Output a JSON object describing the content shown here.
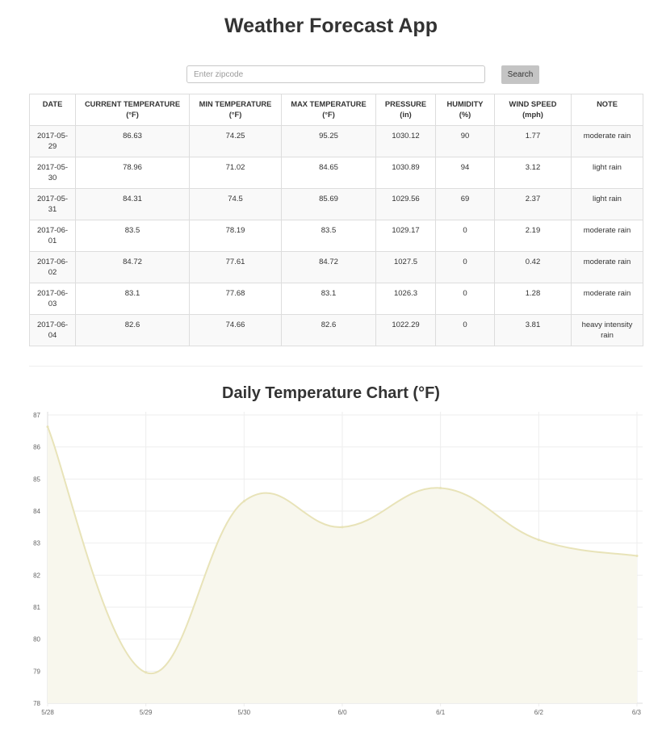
{
  "header": {
    "title": "Weather Forecast App"
  },
  "search": {
    "placeholder": "Enter zipcode",
    "value": "",
    "button_label": "Search"
  },
  "table": {
    "columns": [
      [
        "DATE"
      ],
      [
        "CURRENT TEMPERATURE",
        "(°F)"
      ],
      [
        "MIN TEMPERATURE",
        "(°F)"
      ],
      [
        "MAX TEMPERATURE",
        "(°F)"
      ],
      [
        "PRESSURE",
        "(in)"
      ],
      [
        "HUMIDITY",
        "(%)"
      ],
      [
        "WIND SPEED",
        "(mph)"
      ],
      [
        "NOTE"
      ]
    ],
    "rows": [
      [
        "2017-05-29",
        "86.63",
        "74.25",
        "95.25",
        "1030.12",
        "90",
        "1.77",
        "moderate rain"
      ],
      [
        "2017-05-30",
        "78.96",
        "71.02",
        "84.65",
        "1030.89",
        "94",
        "3.12",
        "light rain"
      ],
      [
        "2017-05-31",
        "84.31",
        "74.5",
        "85.69",
        "1029.56",
        "69",
        "2.37",
        "light rain"
      ],
      [
        "2017-06-01",
        "83.5",
        "78.19",
        "83.5",
        "1029.17",
        "0",
        "2.19",
        "moderate rain"
      ],
      [
        "2017-06-02",
        "84.72",
        "77.61",
        "84.72",
        "1027.5",
        "0",
        "0.42",
        "moderate rain"
      ],
      [
        "2017-06-03",
        "83.1",
        "77.68",
        "83.1",
        "1026.3",
        "0",
        "1.28",
        "moderate rain"
      ],
      [
        "2017-06-04",
        "82.6",
        "74.66",
        "82.6",
        "1022.29",
        "0",
        "3.81",
        "heavy intensity rain"
      ]
    ]
  },
  "chart": {
    "title": "Daily Temperature Chart (°F)"
  },
  "colors": {
    "line": "#e8e3b8",
    "fill": "#f8f7ed",
    "grid": "#eeeeee"
  },
  "chart_data": {
    "type": "area",
    "title": "Daily Temperature Chart (°F)",
    "xlabel": "",
    "ylabel": "",
    "x": [
      "5/28",
      "5/29",
      "5/30",
      "6/0",
      "6/1",
      "6/2",
      "6/3"
    ],
    "values": [
      86.63,
      78.96,
      84.31,
      83.5,
      84.72,
      83.1,
      82.6
    ],
    "ylim": [
      78,
      87
    ],
    "yticks": [
      78,
      79,
      80,
      81,
      82,
      83,
      84,
      85,
      86,
      87
    ],
    "grid": true,
    "legend": "none"
  }
}
